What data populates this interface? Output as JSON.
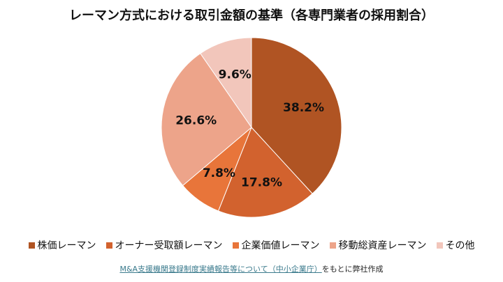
{
  "chart_data": {
    "type": "pie",
    "title": "レーマン方式における取引金額の基準（各専門業者の採用割合）",
    "categories": [
      "株価レーマン",
      "オーナー受取額レーマン",
      "企業価値レーマン",
      "移動総資産レーマン",
      "その他"
    ],
    "values": [
      38.2,
      17.8,
      7.8,
      26.6,
      9.6
    ],
    "labels": [
      "38.2%",
      "17.8%",
      "7.8%",
      "26.6%",
      "9.6%"
    ],
    "colors": [
      "#B05423",
      "#D2622E",
      "#E8753A",
      "#EDA48A",
      "#F2C6BB"
    ],
    "legend_position": "bottom"
  },
  "source": {
    "link_text": "M&A支援機関登録制度実績報告等について（中小企業庁）",
    "suffix": "をもとに弊社作成"
  }
}
